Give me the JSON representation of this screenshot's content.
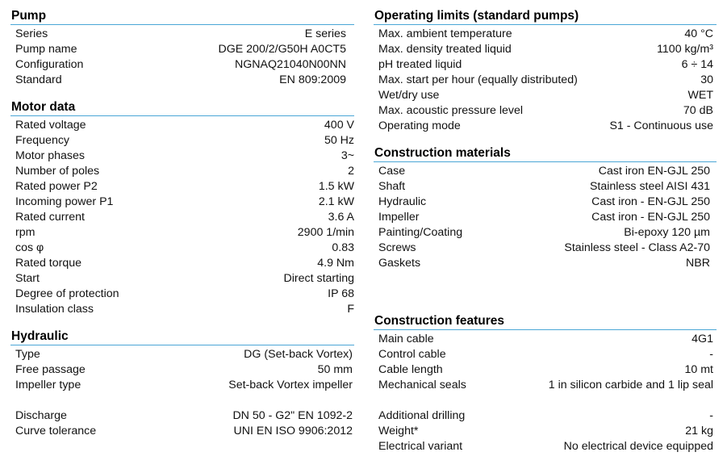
{
  "pump": {
    "title": "Pump",
    "rows": [
      {
        "label": "Series",
        "value": "E series"
      },
      {
        "label": "Pump name",
        "value": "DGE 200/2/G50H A0CT5"
      },
      {
        "label": "Configuration",
        "value": "NGNAQ21040N00NN"
      },
      {
        "label": "Standard",
        "value": "EN 809:2009"
      }
    ]
  },
  "motor": {
    "title": "Motor data",
    "rows": [
      {
        "label": "Rated voltage",
        "value": "400 V"
      },
      {
        "label": "Frequency",
        "value": "50 Hz"
      },
      {
        "label": "Motor phases",
        "value": "3~"
      },
      {
        "label": "Number of poles",
        "value": "2"
      },
      {
        "label": "Rated power P2",
        "value": "1.5 kW"
      },
      {
        "label": "Incoming power P1",
        "value": "2.1 kW"
      },
      {
        "label": "Rated current",
        "value": "3.6 A"
      },
      {
        "label": "rpm",
        "value": "2900 1/min"
      },
      {
        "label": "cos φ",
        "value": "0.83"
      },
      {
        "label": "Rated torque",
        "value": "4.9 Nm"
      },
      {
        "label": "Start",
        "value": "Direct starting"
      },
      {
        "label": "Degree of protection",
        "value": "IP 68"
      },
      {
        "label": "Insulation class",
        "value": "F"
      }
    ]
  },
  "hydraulic": {
    "title": "Hydraulic",
    "rows": [
      {
        "label": "Type",
        "value": "DG (Set-back Vortex)"
      },
      {
        "label": "Free passage",
        "value": "50 mm"
      },
      {
        "label": "Impeller type",
        "value": "Set-back Vortex impeller"
      }
    ],
    "rows2": [
      {
        "label": "Discharge",
        "value": "DN 50 - G2\" EN 1092-2"
      },
      {
        "label": "Curve tolerance",
        "value": "UNI EN ISO 9906:2012"
      }
    ]
  },
  "limits": {
    "title": "Operating limits (standard pumps)",
    "rows": [
      {
        "label": "Max. ambient temperature",
        "value": "40 °C"
      },
      {
        "label": "Max. density treated liquid",
        "value": "1100 kg/m³"
      },
      {
        "label": "pH treated liquid",
        "value": "6 ÷ 14"
      },
      {
        "label": "Max.  start per hour (equally distributed)",
        "value": "30"
      },
      {
        "label": "Wet/dry use",
        "value": "WET"
      },
      {
        "label": "Max. acoustic pressure level",
        "value": "70 dB"
      },
      {
        "label": "Operating mode",
        "value": "S1 - Continuous use"
      }
    ]
  },
  "materials": {
    "title": "Construction materials",
    "rows": [
      {
        "label": "Case",
        "value": "Cast iron EN-GJL 250"
      },
      {
        "label": "Shaft",
        "value": "Stainless steel AISI 431"
      },
      {
        "label": "Hydraulic",
        "value": "Cast iron  - EN-GJL 250"
      },
      {
        "label": "Impeller",
        "value": "Cast iron  - EN-GJL 250"
      },
      {
        "label": "Painting/Coating",
        "value": "Bi-epoxy 120 µm"
      },
      {
        "label": "Screws",
        "value": "Stainless steel - Class A2-70"
      },
      {
        "label": "Gaskets",
        "value": "NBR"
      }
    ]
  },
  "features": {
    "title": "Construction features",
    "rows": [
      {
        "label": "Main cable",
        "value": "4G1"
      },
      {
        "label": "Control cable",
        "value": "-"
      },
      {
        "label": "Cable length",
        "value": "10 mt"
      },
      {
        "label": "Mechanical seals",
        "value": "1 in silicon carbide and 1 lip seal"
      }
    ],
    "rows2": [
      {
        "label": "Additional drilling",
        "value": "-"
      },
      {
        "label": "Weight*",
        "value": "21 kg"
      },
      {
        "label": "Electrical variant",
        "value": "No electrical device equipped"
      }
    ]
  }
}
